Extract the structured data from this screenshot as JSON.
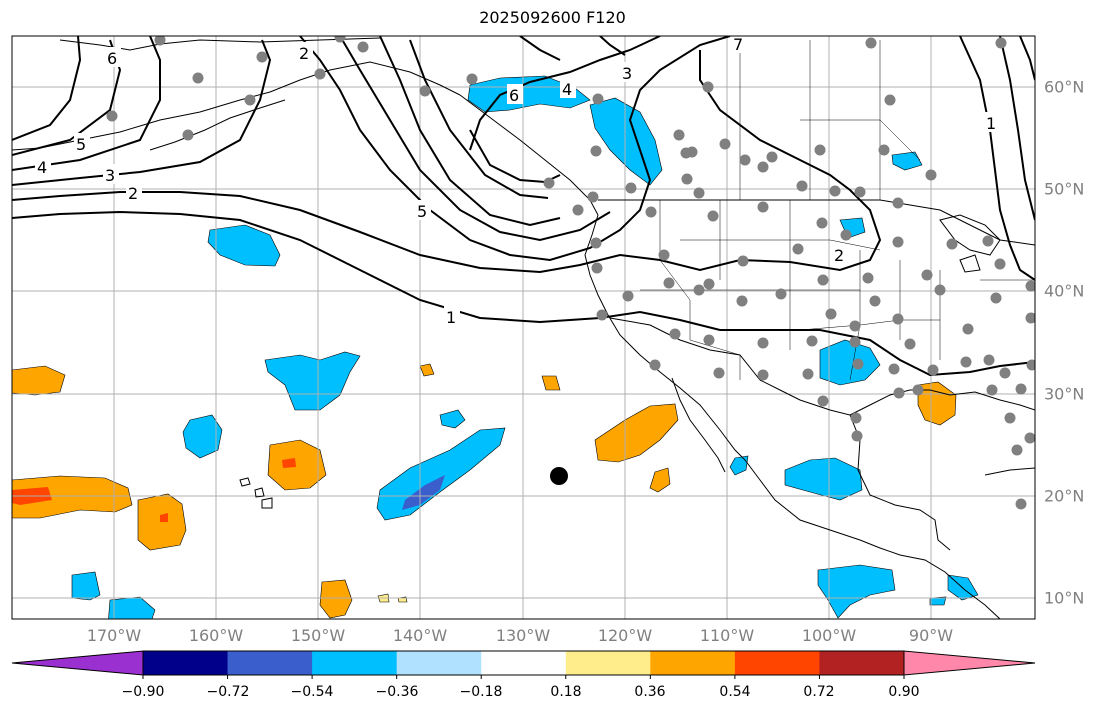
{
  "title": "2025092600 F120",
  "lon_labels": [
    "170°W",
    "160°W",
    "150°W",
    "140°W",
    "130°W",
    "120°W",
    "110°W",
    "100°W",
    "90°W"
  ],
  "lat_labels": [
    "60°N",
    "50°N",
    "40°N",
    "30°N",
    "20°N",
    "10°N"
  ],
  "colorbar": {
    "ticks": [
      "−0.90",
      "−0.72",
      "−0.54",
      "−0.36",
      "−0.18",
      "0.18",
      "0.36",
      "0.54",
      "0.72",
      "0.90"
    ],
    "colors": [
      "#9b30d0",
      "#00008b",
      "#3a5fcd",
      "#00bfff",
      "#b0e2ff",
      "#ffffff",
      "#ffec8b",
      "#ffa500",
      "#ff4500",
      "#b22222",
      "#ff88aa"
    ]
  },
  "contour_labels": [
    "1",
    "2",
    "3",
    "4",
    "5",
    "6",
    "7",
    "2",
    "3",
    "4",
    "5",
    "6",
    "1",
    "2"
  ],
  "marker": "typhoon-center-marker",
  "colors": {
    "station": "#808080",
    "contour": "#000000",
    "grid": "#b0b0b0",
    "land": "#000000"
  }
}
